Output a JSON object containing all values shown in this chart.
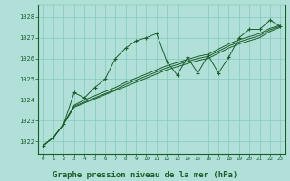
{
  "background_color": "#b0e0d8",
  "grid_color": "#88c8bc",
  "line_color": "#1a5c2a",
  "marker_color": "#1a5c2a",
  "xlabel": "Graphe pression niveau de la mer (hPa)",
  "xlabel_fontsize": 6.5,
  "ylabel_ticks": [
    1022,
    1023,
    1024,
    1025,
    1026,
    1027,
    1028
  ],
  "xlim": [
    -0.5,
    23.5
  ],
  "ylim": [
    1021.4,
    1028.6
  ],
  "xtick_labels": [
    "0",
    "1",
    "2",
    "3",
    "4",
    "5",
    "6",
    "7",
    "8",
    "9",
    "10",
    "11",
    "12",
    "13",
    "14",
    "15",
    "16",
    "17",
    "18",
    "19",
    "20",
    "21",
    "22",
    "23"
  ],
  "series": [
    {
      "x": [
        0,
        1,
        2,
        3,
        4,
        5,
        6,
        7,
        8,
        9,
        10,
        11,
        12,
        13,
        14,
        15,
        16,
        17,
        18,
        19,
        20,
        21,
        22,
        23
      ],
      "y": [
        1021.8,
        1022.2,
        1022.85,
        1024.35,
        1024.1,
        1024.6,
        1025.0,
        1026.0,
        1026.5,
        1026.85,
        1027.0,
        1027.2,
        1025.85,
        1025.2,
        1026.05,
        1025.3,
        1026.15,
        1025.3,
        1026.05,
        1027.0,
        1027.4,
        1027.4,
        1027.85,
        1027.55
      ],
      "has_markers": true
    },
    {
      "x": [
        0,
        1,
        2,
        3,
        4,
        5,
        6,
        7,
        8,
        9,
        10,
        11,
        12,
        13,
        14,
        15,
        16,
        17,
        18,
        19,
        20,
        21,
        22,
        23
      ],
      "y": [
        1021.8,
        1022.2,
        1022.85,
        1023.75,
        1024.0,
        1024.2,
        1024.4,
        1024.6,
        1024.85,
        1025.05,
        1025.25,
        1025.45,
        1025.65,
        1025.8,
        1025.95,
        1026.1,
        1026.2,
        1026.45,
        1026.7,
        1026.9,
        1027.05,
        1027.2,
        1027.45,
        1027.6
      ],
      "has_markers": false
    },
    {
      "x": [
        0,
        1,
        2,
        3,
        4,
        5,
        6,
        7,
        8,
        9,
        10,
        11,
        12,
        13,
        14,
        15,
        16,
        17,
        18,
        19,
        20,
        21,
        22,
        23
      ],
      "y": [
        1021.8,
        1022.2,
        1022.85,
        1023.7,
        1023.9,
        1024.1,
        1024.3,
        1024.5,
        1024.75,
        1024.95,
        1025.15,
        1025.35,
        1025.55,
        1025.7,
        1025.85,
        1026.0,
        1026.1,
        1026.35,
        1026.6,
        1026.8,
        1026.95,
        1027.1,
        1027.38,
        1027.55
      ],
      "has_markers": false
    },
    {
      "x": [
        0,
        1,
        2,
        3,
        4,
        5,
        6,
        7,
        8,
        9,
        10,
        11,
        12,
        13,
        14,
        15,
        16,
        17,
        18,
        19,
        20,
        21,
        22,
        23
      ],
      "y": [
        1021.8,
        1022.2,
        1022.85,
        1023.65,
        1023.85,
        1024.05,
        1024.25,
        1024.45,
        1024.65,
        1024.85,
        1025.05,
        1025.25,
        1025.45,
        1025.6,
        1025.75,
        1025.9,
        1026.0,
        1026.25,
        1026.5,
        1026.7,
        1026.85,
        1027.0,
        1027.3,
        1027.5
      ],
      "has_markers": false
    }
  ]
}
